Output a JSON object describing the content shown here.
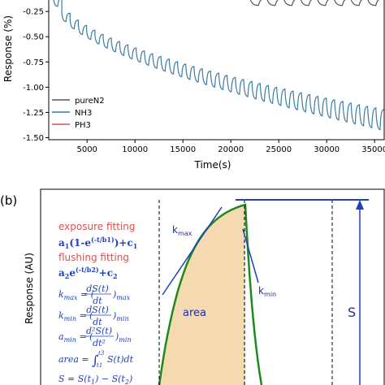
{
  "chart_data": [
    {
      "type": "line",
      "panel_label": "",
      "xlabel": "Time(s)",
      "ylabel": "Response (%)",
      "xlim": [
        1000,
        36000
      ],
      "ylim": [
        -1.52,
        -0.12
      ],
      "xticks": [
        5000,
        10000,
        15000,
        20000,
        25000,
        30000,
        35000
      ],
      "xtick_labels": [
        "5000",
        "10000",
        "15000",
        "20000",
        "25000",
        "30000",
        "35000"
      ],
      "yticks": [
        -0.25,
        -0.5,
        -0.75,
        -1.0,
        -1.25,
        -1.5
      ],
      "ytick_labels": [
        "-0.25",
        "-0.50",
        "-0.75",
        "-1.00",
        "-1.25",
        "-1.50"
      ],
      "legend_placement": "bottom-right",
      "series": [
        {
          "name": "pureN2",
          "color": "#555555",
          "segments": [
            {
              "x_start": 22000,
              "x_end": 36000,
              "cycles": 8,
              "top_start": -0.12,
              "top_end": -0.12,
              "depth": 0.07
            }
          ]
        },
        {
          "name": "NH3",
          "color": "#3a7ca5",
          "segments": [
            {
              "x_start": 1500,
              "x_end": 36000,
              "cycles": 40,
              "top_start": -0.12,
              "top_end": -1.22,
              "depth_start": 0.08,
              "depth_end": 0.2
            }
          ]
        },
        {
          "name": "PH3",
          "color": "#d9534f",
          "segments": []
        }
      ]
    },
    {
      "type": "diagram",
      "panel_label": "(b)",
      "ylabel": "Response (AU)",
      "equations": {
        "exposure_title": "exposure fitting",
        "exposure_eq": "a",
        "exposure_eq_full": "a1(1-e(-t/b1))+c1",
        "flushing_title": "flushing fitting",
        "flushing_eq_full": "a2e(-t/b2)+c2",
        "kmax_lhs": "k",
        "kmax_sub": "max",
        "kmax_num": "dS(t)",
        "kmax_den": "dt",
        "kmin_lhs": "k",
        "kmin_sub": "min",
        "amin_lhs": "a",
        "amin_num": "d²S(t)",
        "amin_den": "dt²",
        "area_lhs": "area = ",
        "area_int": "∫",
        "area_t3": "t3",
        "area_t1": "t1",
        "area_rhs": "S(t)dt",
        "s_eq": "S = S(t",
        "eq_sign": "=",
        "sub_1": "1",
        "sub_2": "2",
        "paren_open": "(",
        "paren_close": ")",
        "e_text": "e",
        "exp_1": "(-t/b1)",
        "exp_2": "(-t/b2)",
        "c_text": "c",
        "minus_s": ") − S(t",
        "close_p": ")"
      },
      "annotations": {
        "kmax": "k",
        "kmax_sub": "max",
        "kmin": "k",
        "kmin_sub": "min",
        "area": "area",
        "S": "S"
      },
      "colors": {
        "curve": "#1e8a1e",
        "fill": "#f5d9b0",
        "lines": "#1f3fbf",
        "red_text": "#d9534f"
      }
    }
  ]
}
